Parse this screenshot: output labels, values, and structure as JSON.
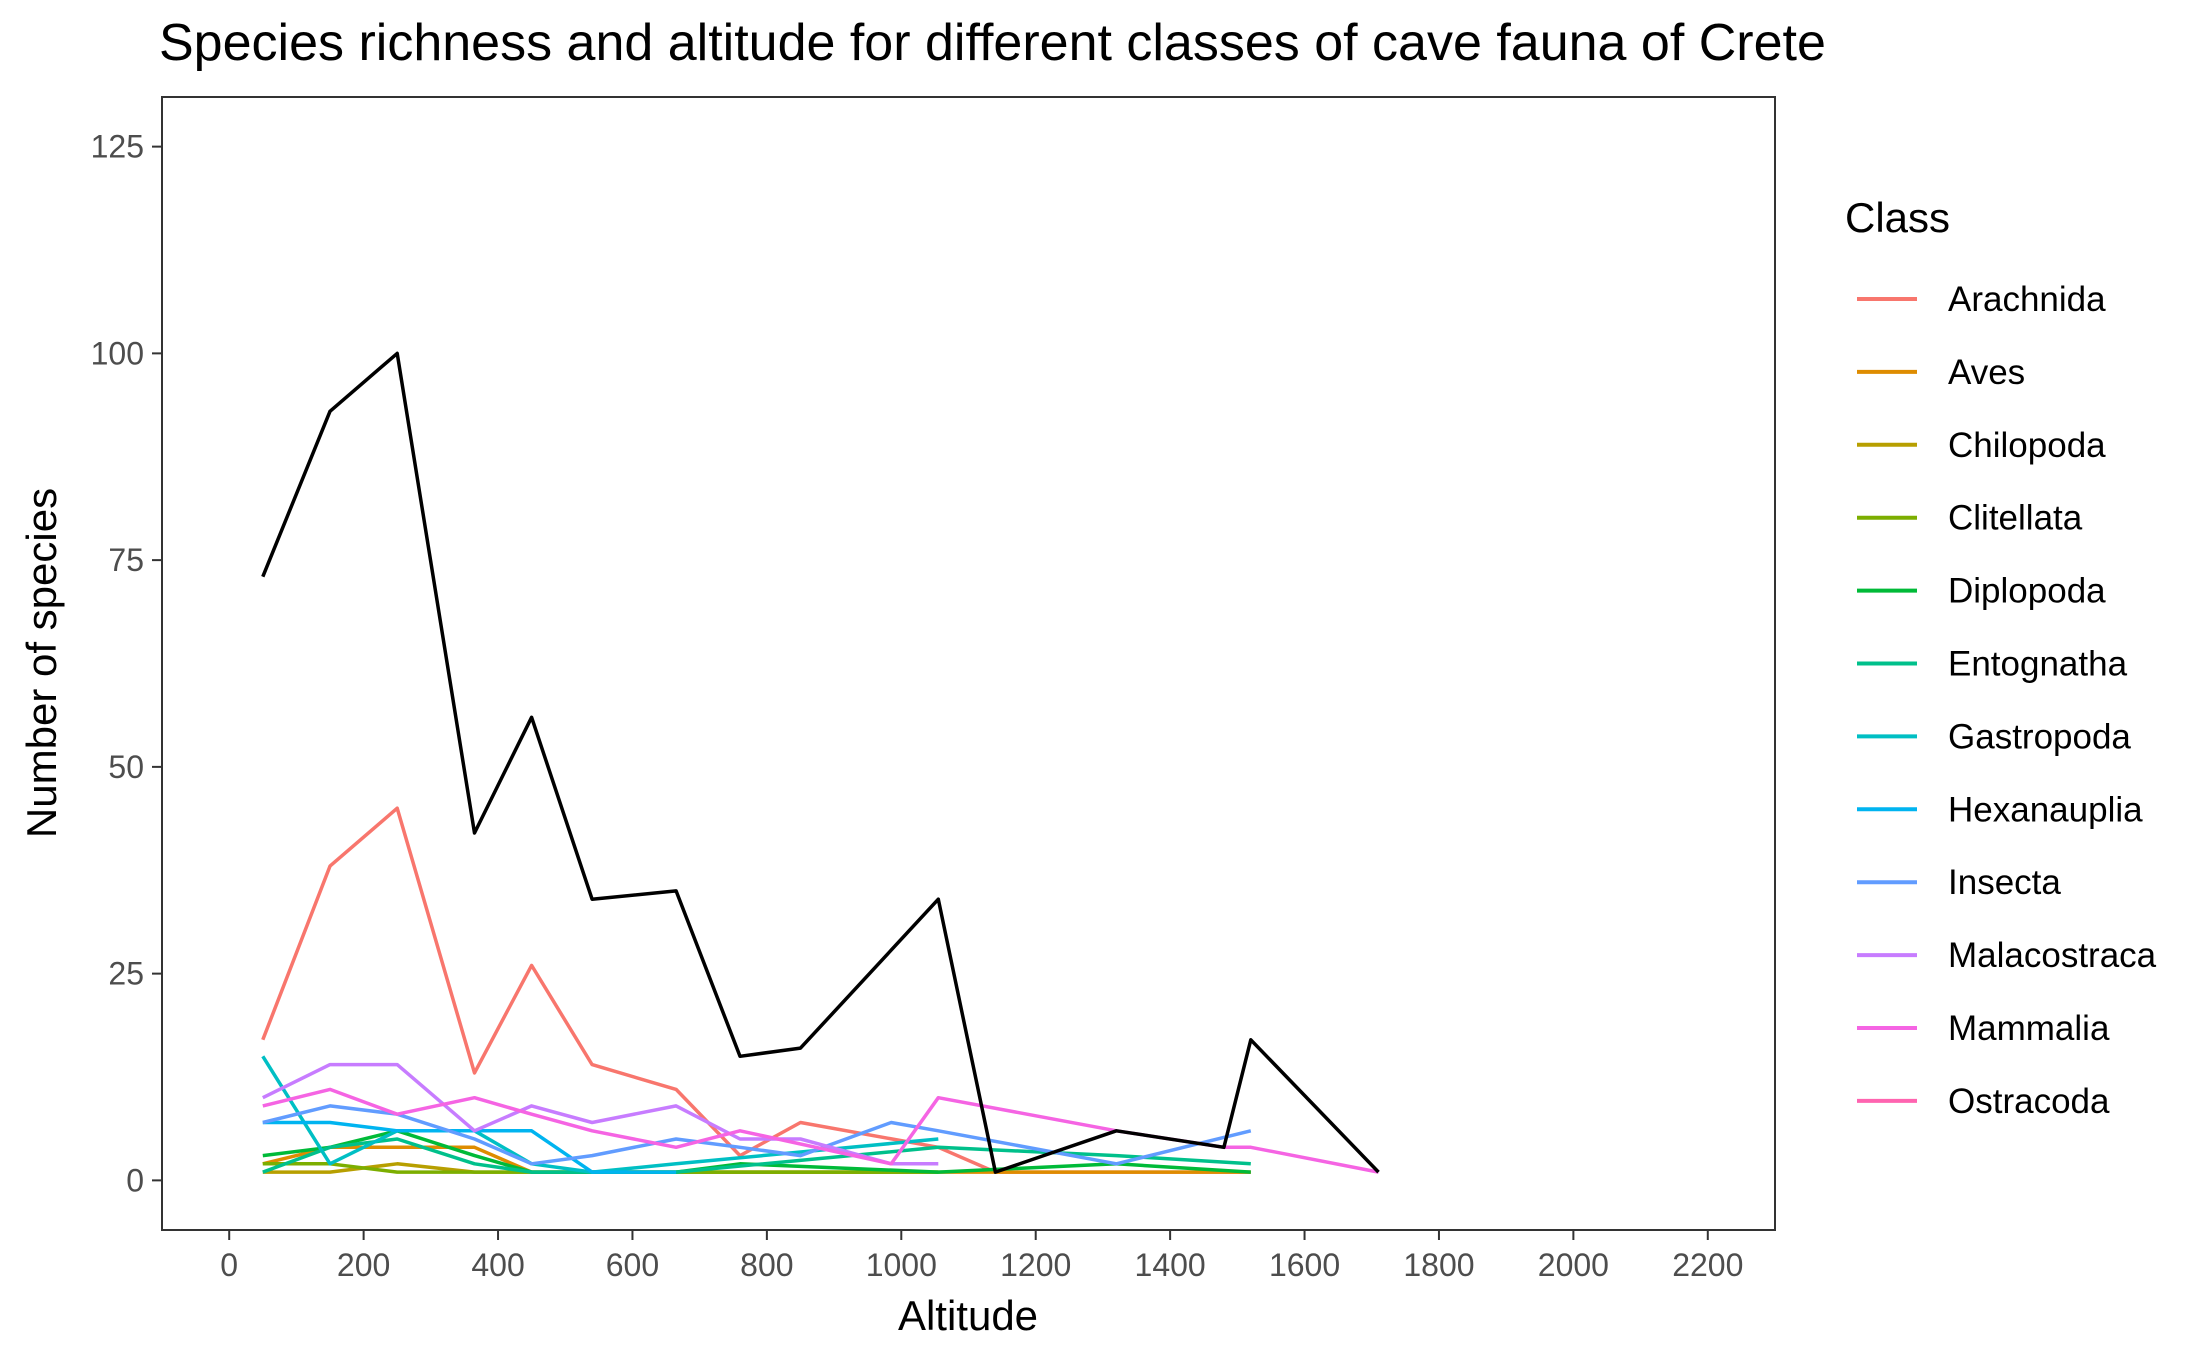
{
  "chart_data": {
    "type": "line",
    "title": "Species richness and altitude for different classes of cave fauna of Crete",
    "xlabel": "Altitude",
    "ylabel": "Number of species",
    "xlim": [
      -100,
      2300
    ],
    "ylim": [
      -6,
      131
    ],
    "x_ticks": [
      0,
      200,
      400,
      600,
      800,
      1000,
      1200,
      1400,
      1600,
      1800,
      2000,
      2200
    ],
    "y_ticks": [
      0,
      25,
      50,
      75,
      100,
      125
    ],
    "x_tick_labels": [
      "0",
      "200",
      "400",
      "600",
      "800",
      "1000",
      "1200",
      "1400",
      "1600",
      "1800",
      "2000",
      "2200"
    ],
    "y_tick_labels": [
      "0",
      "25",
      "50",
      "75",
      "100",
      "125"
    ],
    "grid": false,
    "legend": {
      "title": "Class",
      "position": "right"
    },
    "total": {
      "color": "#000000",
      "points": [
        [
          50,
          73
        ],
        [
          150,
          93
        ],
        [
          250,
          100
        ],
        [
          365,
          42
        ],
        [
          450,
          56
        ],
        [
          540,
          34
        ],
        [
          665,
          35
        ],
        [
          760,
          15
        ],
        [
          850,
          16
        ],
        [
          1055,
          34
        ],
        [
          1140,
          1
        ],
        [
          1320,
          6
        ],
        [
          1480,
          4
        ],
        [
          1520,
          17
        ],
        [
          1710,
          1
        ]
      ]
    },
    "series": [
      {
        "name": "Arachnida",
        "color": "#F8766D",
        "points": [
          [
            50,
            17
          ],
          [
            150,
            38
          ],
          [
            250,
            45
          ],
          [
            365,
            13
          ],
          [
            450,
            26
          ],
          [
            540,
            14
          ],
          [
            665,
            11
          ],
          [
            760,
            3
          ],
          [
            850,
            7
          ],
          [
            1055,
            4
          ],
          [
            1140,
            1
          ],
          [
            1520,
            1
          ]
        ]
      },
      {
        "name": "Aves",
        "color": "#DE8C00",
        "points": [
          [
            50,
            2
          ],
          [
            150,
            4
          ],
          [
            250,
            4
          ],
          [
            365,
            4
          ],
          [
            450,
            1
          ],
          [
            1140,
            1
          ],
          [
            1520,
            1
          ]
        ]
      },
      {
        "name": "Chilopoda",
        "color": "#B79F00",
        "points": [
          [
            50,
            1
          ],
          [
            150,
            1
          ],
          [
            250,
            2
          ],
          [
            365,
            1
          ],
          [
            450,
            1
          ],
          [
            1055,
            1
          ]
        ]
      },
      {
        "name": "Clitellata",
        "color": "#7CAE00",
        "points": [
          [
            50,
            2
          ],
          [
            150,
            2
          ],
          [
            250,
            1
          ],
          [
            365,
            1
          ],
          [
            450,
            1
          ],
          [
            1055,
            1
          ]
        ]
      },
      {
        "name": "Diplopoda",
        "color": "#00BA38",
        "points": [
          [
            50,
            3
          ],
          [
            150,
            4
          ],
          [
            250,
            6
          ],
          [
            365,
            3
          ],
          [
            450,
            1
          ],
          [
            665,
            1
          ],
          [
            760,
            2
          ],
          [
            1055,
            1
          ],
          [
            1320,
            2
          ],
          [
            1520,
            1
          ]
        ]
      },
      {
        "name": "Entognatha",
        "color": "#00C08B",
        "points": [
          [
            50,
            1
          ],
          [
            150,
            4
          ],
          [
            250,
            5
          ],
          [
            365,
            2
          ],
          [
            450,
            1
          ],
          [
            665,
            1
          ],
          [
            1055,
            4
          ],
          [
            1320,
            3
          ],
          [
            1520,
            2
          ]
        ]
      },
      {
        "name": "Gastropoda",
        "color": "#00BFC4",
        "points": [
          [
            50,
            15
          ],
          [
            150,
            2
          ],
          [
            250,
            6
          ],
          [
            365,
            6
          ],
          [
            450,
            2
          ],
          [
            540,
            1
          ],
          [
            665,
            2
          ],
          [
            1055,
            5
          ]
        ]
      },
      {
        "name": "Hexanauplia",
        "color": "#00B4F0",
        "points": [
          [
            50,
            7
          ],
          [
            150,
            7
          ],
          [
            250,
            6
          ],
          [
            365,
            6
          ],
          [
            450,
            6
          ],
          [
            540,
            1
          ],
          [
            665,
            1
          ]
        ]
      },
      {
        "name": "Insecta",
        "color": "#619CFF",
        "points": [
          [
            50,
            7
          ],
          [
            150,
            9
          ],
          [
            250,
            8
          ],
          [
            365,
            5
          ],
          [
            450,
            2
          ],
          [
            540,
            3
          ],
          [
            665,
            5
          ],
          [
            760,
            4
          ],
          [
            850,
            3
          ],
          [
            985,
            7
          ],
          [
            1055,
            6
          ],
          [
            1320,
            2
          ],
          [
            1520,
            6
          ]
        ]
      },
      {
        "name": "Malacostraca",
        "color": "#C77CFF",
        "points": [
          [
            50,
            10
          ],
          [
            150,
            14
          ],
          [
            250,
            14
          ],
          [
            365,
            6
          ],
          [
            450,
            9
          ],
          [
            540,
            7
          ],
          [
            665,
            9
          ],
          [
            760,
            5
          ],
          [
            850,
            5
          ],
          [
            985,
            2
          ],
          [
            1055,
            2
          ]
        ]
      },
      {
        "name": "Mammalia",
        "color": "#F564E3",
        "points": [
          [
            50,
            9
          ],
          [
            150,
            11
          ],
          [
            250,
            8
          ],
          [
            365,
            10
          ],
          [
            450,
            8
          ],
          [
            540,
            6
          ],
          [
            665,
            4
          ],
          [
            760,
            6
          ],
          [
            985,
            2
          ],
          [
            1055,
            10
          ],
          [
            1320,
            6
          ],
          [
            1480,
            4
          ],
          [
            1520,
            4
          ],
          [
            1710,
            1
          ]
        ]
      },
      {
        "name": "Ostracoda",
        "color": "#FF64B0",
        "points": []
      }
    ]
  }
}
